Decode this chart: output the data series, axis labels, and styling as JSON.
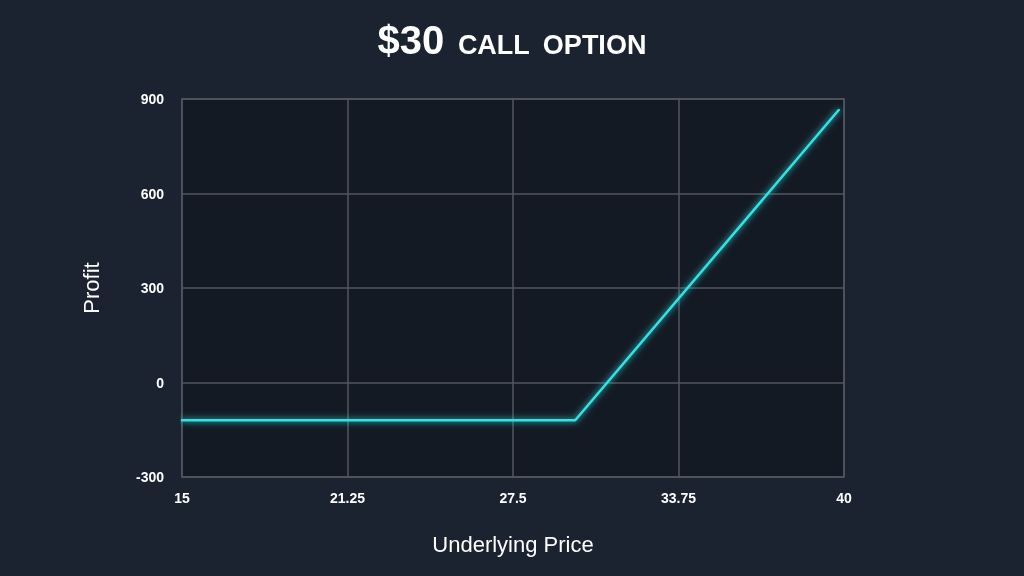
{
  "chart_data": {
    "type": "line",
    "title": "$30 CALL OPTION",
    "xlabel": "Underlying Price",
    "ylabel": "Profit",
    "x": [
      15,
      29.85,
      39.8
    ],
    "series": [
      {
        "color": "#2ee5e5",
        "values": [
          -120,
          -120,
          865
        ]
      }
    ],
    "xlim": [
      15,
      40
    ],
    "xticks": [
      15,
      21.25,
      27.5,
      33.75,
      40
    ],
    "ylim": [
      -300,
      900
    ],
    "yticks": [
      -300,
      0,
      300,
      600,
      900
    ],
    "grid": true,
    "line_style": "solid"
  }
}
